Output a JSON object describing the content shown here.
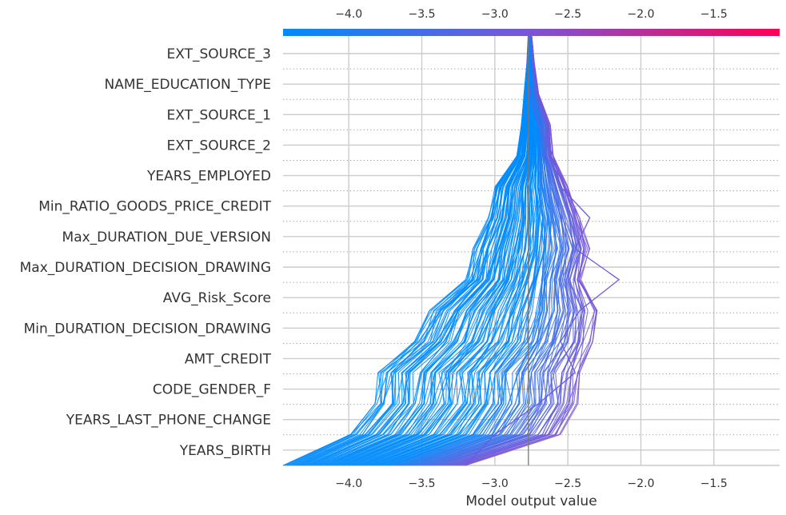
{
  "chart_data": {
    "type": "line",
    "subtype": "shap-decision-plot",
    "title": "",
    "xlabel": "Model output value",
    "ylabel": "",
    "xlim": [
      -4.45,
      -1.05
    ],
    "xticks": [
      -4.0,
      -3.5,
      -3.0,
      -2.5,
      -2.0,
      -1.5
    ],
    "tick_labels": [
      "−4.0",
      "−3.5",
      "−3.0",
      "−2.5",
      "−2.0",
      "−1.5"
    ],
    "base_value": -2.77,
    "features": [
      "EXT_SOURCE_3",
      "NAME_EDUCATION_TYPE",
      "EXT_SOURCE_1",
      "EXT_SOURCE_2",
      "YEARS_EMPLOYED",
      "Min_RATIO_GOODS_PRICE_CREDIT",
      "Max_DURATION_DUE_VERSION",
      "Max_DURATION_DECISION_DRAWING",
      "AVG_Risk_Score",
      "Min_DURATION_DECISION_DRAWING",
      "AMT_CREDIT",
      "CODE_GENDER_F",
      "YEARS_LAST_PHONE_CHANGE",
      "YEARS_BIRTH"
    ],
    "envelope_left": [
      -2.76,
      -2.78,
      -2.8,
      -2.82,
      -2.85,
      -3.0,
      -3.05,
      -3.15,
      -3.2,
      -3.45,
      -3.55,
      -3.8,
      -3.82,
      -4.0,
      -4.45
    ],
    "envelope_right": [
      -2.75,
      -2.73,
      -2.7,
      -2.62,
      -2.6,
      -2.5,
      -2.42,
      -2.35,
      -2.4,
      -2.3,
      -2.33,
      -2.42,
      -2.43,
      -2.55,
      -3.2
    ],
    "outlier_line": [
      -2.77,
      -2.78,
      -2.76,
      -2.7,
      -2.6,
      -2.55,
      -2.35,
      -2.45,
      -2.15,
      -2.42,
      -2.55,
      -2.45,
      -2.7,
      -3.0,
      -3.2
    ],
    "colorbar": {
      "low_color": "#008bfb",
      "mid_color": "#7b55d6",
      "high_color": "#ff0052"
    },
    "grid": true
  }
}
